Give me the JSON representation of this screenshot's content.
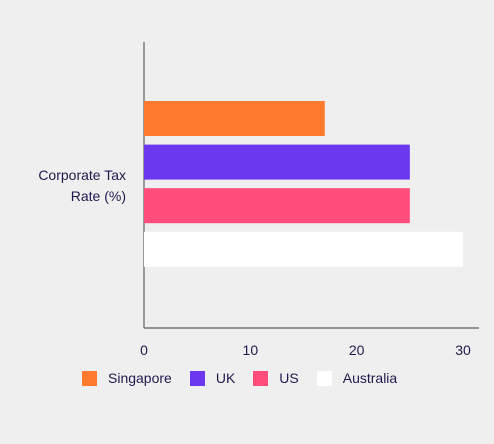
{
  "chart_data": {
    "type": "bar",
    "orientation": "horizontal",
    "categories": [
      "Corporate Tax Rate (%)"
    ],
    "series": [
      {
        "name": "Singapore",
        "values": [
          17
        ],
        "color": "#ff7a2f"
      },
      {
        "name": "UK",
        "values": [
          25
        ],
        "color": "#6b38f0"
      },
      {
        "name": "US",
        "values": [
          25
        ],
        "color": "#ff4d7b"
      },
      {
        "name": "Australia",
        "values": [
          30
        ],
        "color": "#ffffff"
      }
    ],
    "x_ticks": [
      "0",
      "10",
      "20",
      "30"
    ],
    "xlim": [
      0,
      30
    ],
    "grid": false,
    "legend_position": "bottom"
  }
}
